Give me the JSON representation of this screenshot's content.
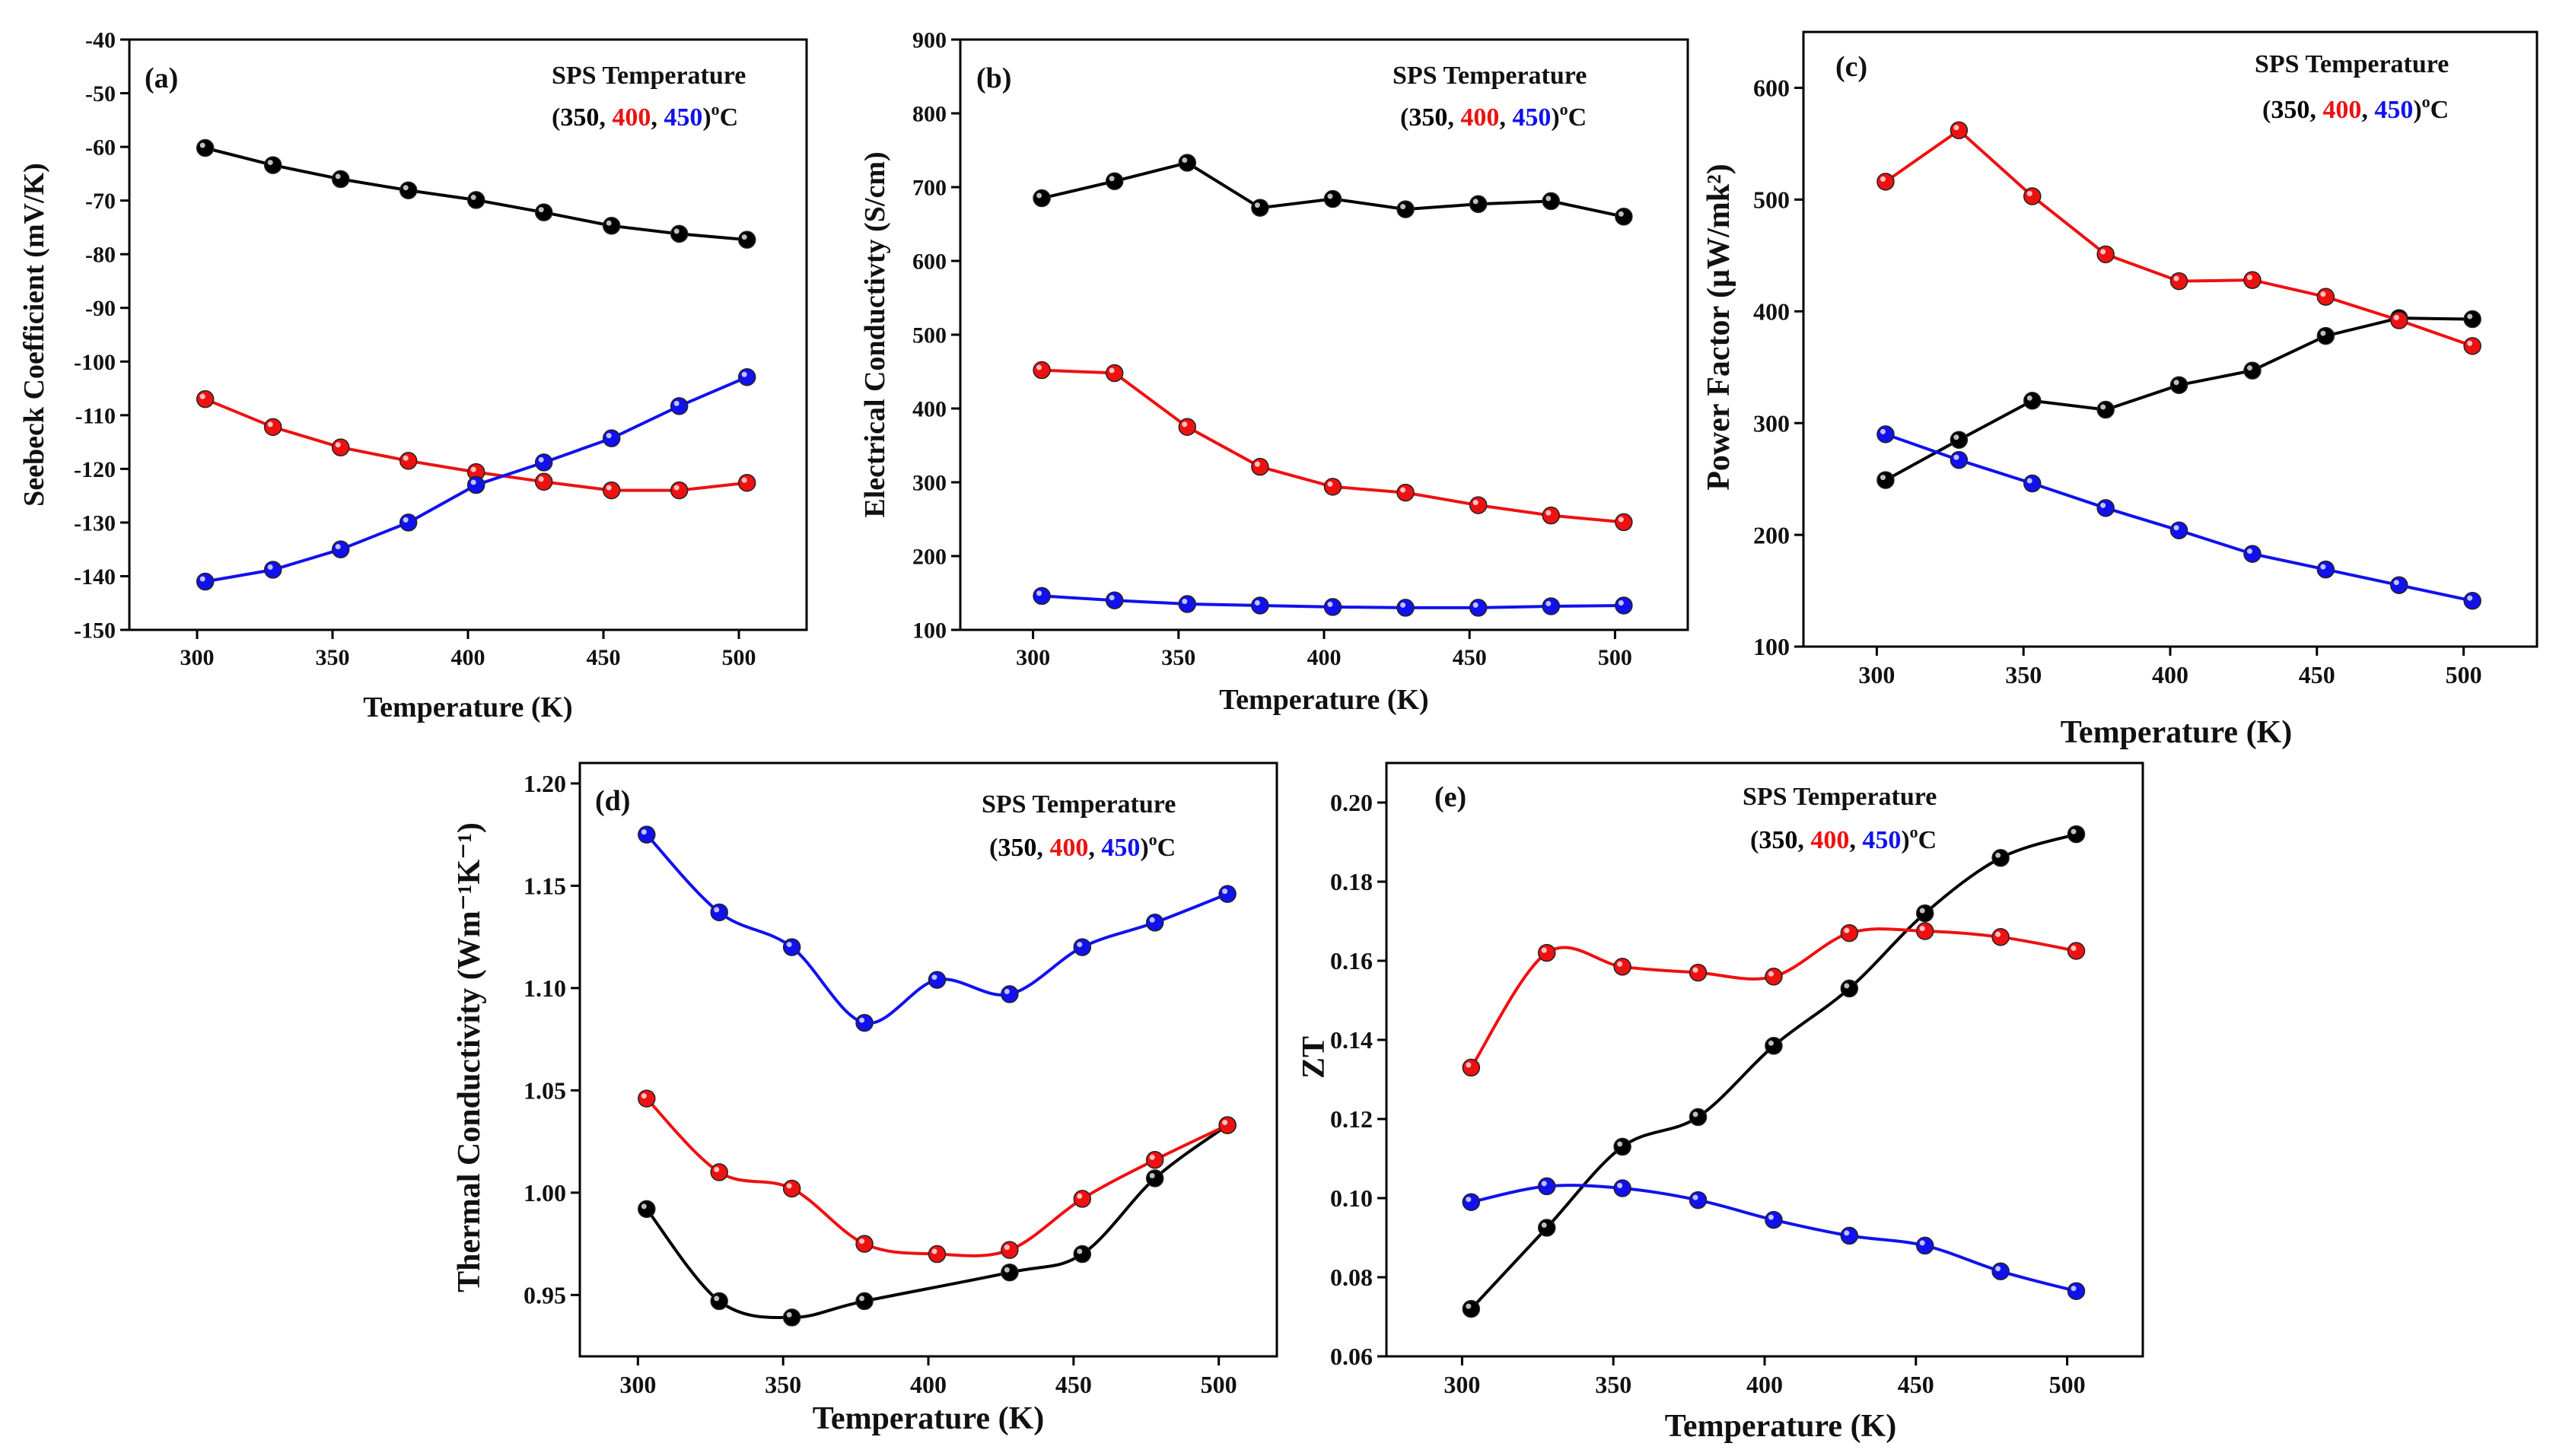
{
  "colors": {
    "s350": "#000000",
    "s400": "#ee1111",
    "s450": "#1111ee",
    "axis": "#000000"
  },
  "legend": {
    "title": "SPS Temperature",
    "open": "(",
    "v350": "350",
    "sep1": ", ",
    "v400": "400",
    "sep2": ", ",
    "v450": "450",
    "close": ")",
    "deg": "o",
    "unit": "C"
  },
  "chart_data": [
    {
      "id": "a",
      "panel_label": "(a)",
      "type": "line",
      "xlabel": "Temperature (K)",
      "ylabel": "Seebeck Coefficient (mV/K)",
      "xlim": [
        275,
        525
      ],
      "ylim": [
        -150,
        -40
      ],
      "xticks": [
        "300",
        "350",
        "400",
        "450",
        "500"
      ],
      "yticks": [
        "-40",
        "-50",
        "-60",
        "-70",
        "-80",
        "-90",
        "-100",
        "-110",
        "-120",
        "-130",
        "-140",
        "-150"
      ],
      "smooth": false,
      "series": [
        {
          "name": "350",
          "color": "#000000",
          "x": [
            303,
            328,
            353,
            378,
            403,
            428,
            453,
            478,
            503
          ],
          "y": [
            -60.2,
            -63.4,
            -66,
            -68.1,
            -69.9,
            -72.2,
            -74.7,
            -76.2,
            -77.3
          ]
        },
        {
          "name": "400",
          "color": "#ee1111",
          "x": [
            303,
            328,
            353,
            378,
            403,
            428,
            453,
            478,
            503
          ],
          "y": [
            -107,
            -112.2,
            -116,
            -118.5,
            -120.6,
            -122.4,
            -124,
            -124,
            -122.6
          ]
        },
        {
          "name": "450",
          "color": "#1111ee",
          "x": [
            303,
            328,
            353,
            378,
            403,
            428,
            453,
            478,
            503
          ],
          "y": [
            -141,
            -138.8,
            -135,
            -130,
            -123,
            -118.8,
            -114.3,
            -108.3,
            -102.9
          ]
        }
      ]
    },
    {
      "id": "b",
      "panel_label": "(b)",
      "type": "line",
      "xlabel": "Temperature (K)",
      "ylabel": "Electrical Conductivty (S/cm)",
      "xlim": [
        275,
        525
      ],
      "ylim": [
        100,
        900
      ],
      "xticks": [
        "300",
        "350",
        "400",
        "450",
        "500"
      ],
      "yticks": [
        "100",
        "200",
        "300",
        "400",
        "500",
        "600",
        "700",
        "800",
        "900"
      ],
      "smooth": false,
      "series": [
        {
          "name": "350",
          "color": "#000000",
          "x": [
            303,
            328,
            353,
            378,
            403,
            428,
            453,
            478,
            503
          ],
          "y": [
            685,
            708,
            733,
            672,
            684,
            670,
            677,
            681,
            660
          ]
        },
        {
          "name": "400",
          "color": "#ee1111",
          "x": [
            303,
            328,
            353,
            378,
            403,
            428,
            453,
            478,
            503
          ],
          "y": [
            452,
            448,
            375,
            321,
            294,
            286,
            269,
            255,
            246
          ]
        },
        {
          "name": "450",
          "color": "#1111ee",
          "x": [
            303,
            328,
            353,
            378,
            403,
            428,
            453,
            478,
            503
          ],
          "y": [
            146,
            140,
            135,
            133,
            131,
            130,
            130,
            132,
            133
          ]
        }
      ]
    },
    {
      "id": "c",
      "panel_label": "(c)",
      "type": "line",
      "xlabel": "Temperature (K)",
      "ylabel": "Power Factor (µW/mk²)",
      "xlim": [
        275,
        525
      ],
      "ylim": [
        100,
        650
      ],
      "xticks": [
        "300",
        "350",
        "400",
        "450",
        "500"
      ],
      "yticks": [
        "100",
        "200",
        "300",
        "400",
        "500",
        "600"
      ],
      "smooth": false,
      "series": [
        {
          "name": "350",
          "color": "#000000",
          "x": [
            303,
            328,
            353,
            378,
            403,
            428,
            453,
            478,
            503
          ],
          "y": [
            249,
            285,
            320,
            312,
            334,
            347,
            378,
            394,
            393
          ]
        },
        {
          "name": "400",
          "color": "#ee1111",
          "x": [
            303,
            328,
            353,
            378,
            403,
            428,
            453,
            478,
            503
          ],
          "y": [
            516,
            562,
            503,
            451,
            427,
            428,
            413,
            392,
            369
          ]
        },
        {
          "name": "450",
          "color": "#1111ee",
          "x": [
            303,
            328,
            353,
            378,
            403,
            428,
            453,
            478,
            503
          ],
          "y": [
            290,
            267,
            246,
            224,
            204,
            183,
            169,
            155,
            141
          ]
        }
      ]
    },
    {
      "id": "d",
      "panel_label": "(d)",
      "type": "line",
      "xlabel": "Temperature (K)",
      "ylabel": "Thermal Conductivity (Wm⁻¹K⁻¹)",
      "xlim": [
        280,
        520
      ],
      "ylim": [
        0.92,
        1.21
      ],
      "xticks": [
        "300",
        "350",
        "400",
        "450",
        "500"
      ],
      "yticks": [
        "0.95",
        "1.00",
        "1.05",
        "1.10",
        "1.15",
        "1.20"
      ],
      "smooth": true,
      "series": [
        {
          "name": "350",
          "color": "#000000",
          "x": [
            303,
            328,
            353,
            378,
            428,
            453,
            478,
            503
          ],
          "y": [
            0.992,
            0.947,
            0.939,
            0.947,
            0.961,
            0.97,
            1.007,
            1.033
          ]
        },
        {
          "name": "400",
          "color": "#ee1111",
          "x": [
            303,
            328,
            353,
            378,
            403,
            428,
            453,
            478,
            503
          ],
          "y": [
            1.046,
            1.01,
            1.002,
            0.975,
            0.97,
            0.972,
            0.997,
            1.016,
            1.033
          ]
        },
        {
          "name": "450",
          "color": "#1111ee",
          "x": [
            303,
            328,
            353,
            378,
            403,
            428,
            453,
            478,
            503
          ],
          "y": [
            1.175,
            1.137,
            1.12,
            1.083,
            1.104,
            1.097,
            1.12,
            1.132,
            1.146
          ]
        }
      ]
    },
    {
      "id": "e",
      "panel_label": "(e)",
      "type": "line",
      "xlabel": "Temperature (K)",
      "ylabel": "ZT",
      "xlim": [
        275,
        525
      ],
      "ylim": [
        0.06,
        0.21
      ],
      "xticks": [
        "300",
        "350",
        "400",
        "450",
        "500"
      ],
      "yticks": [
        "0.06",
        "0.08",
        "0.10",
        "0.12",
        "0.14",
        "0.16",
        "0.18",
        "0.20"
      ],
      "smooth": true,
      "series": [
        {
          "name": "350",
          "color": "#000000",
          "x": [
            303,
            328,
            353,
            378,
            403,
            428,
            453,
            478,
            503
          ],
          "y": [
            0.072,
            0.0925,
            0.113,
            0.1205,
            0.1385,
            0.153,
            0.172,
            0.186,
            0.192
          ]
        },
        {
          "name": "400",
          "color": "#ee1111",
          "x": [
            303,
            328,
            353,
            378,
            403,
            428,
            453,
            478,
            503
          ],
          "y": [
            0.133,
            0.162,
            0.1585,
            0.157,
            0.156,
            0.167,
            0.1675,
            0.166,
            0.1625
          ]
        },
        {
          "name": "450",
          "color": "#1111ee",
          "x": [
            303,
            328,
            353,
            378,
            403,
            428,
            453,
            478,
            503
          ],
          "y": [
            0.099,
            0.103,
            0.1025,
            0.0995,
            0.0945,
            0.0905,
            0.088,
            0.0815,
            0.0765
          ]
        }
      ]
    }
  ]
}
